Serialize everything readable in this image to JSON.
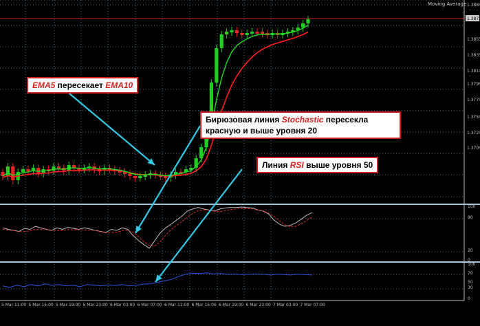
{
  "window": {
    "indicator_title": "Moving Average"
  },
  "price_axis": {
    "labels": [
      "1.3885",
      "1.3872",
      "1.3855",
      "1.3835",
      "1.3810",
      "1.3795",
      "1.3775",
      "1.3750",
      "1.3725",
      "1.3705"
    ],
    "current_price": "1.3872"
  },
  "stoch_axis": {
    "labels": [
      "100",
      "80",
      "20",
      "0"
    ]
  },
  "rsi_axis": {
    "labels": [
      "100",
      "70",
      "50",
      "30",
      "0"
    ]
  },
  "time_axis": {
    "labels": [
      "5 Mar 11:00",
      "5 Mar 15:00",
      "5 Mar 19:00",
      "5 Mar 23:00",
      "6 Mar 03:00",
      "6 Mar 07:00",
      "6 Mar 11:00",
      "6 Mar 15:00",
      "6 Mar 19:00",
      "6 Mar 23:00",
      "7 Mar 03:00",
      "7 Mar 07:00"
    ]
  },
  "annotations": {
    "ema": {
      "kw1": "EMA5",
      "mid": " пересекает ",
      "kw2": "EMA10"
    },
    "stochastic": {
      "pre": "Бирюзовая линия ",
      "kw": "Stochastic",
      "post": " пересекла",
      "line2": "красную и выше уровня 20"
    },
    "rsi": {
      "pre": "Линия ",
      "kw": "RSI",
      "post": " выше уровня 50"
    }
  },
  "colors": {
    "background": "#000000",
    "bull_candle": "#22cc22",
    "bear_candle": "#e32727",
    "ema_fast": "#22dd22",
    "ema_slow": "#ff2020",
    "arrow": "#35c8e6",
    "panel_border": "#a6c8dc",
    "rsi_line": "#3050e0"
  }
}
